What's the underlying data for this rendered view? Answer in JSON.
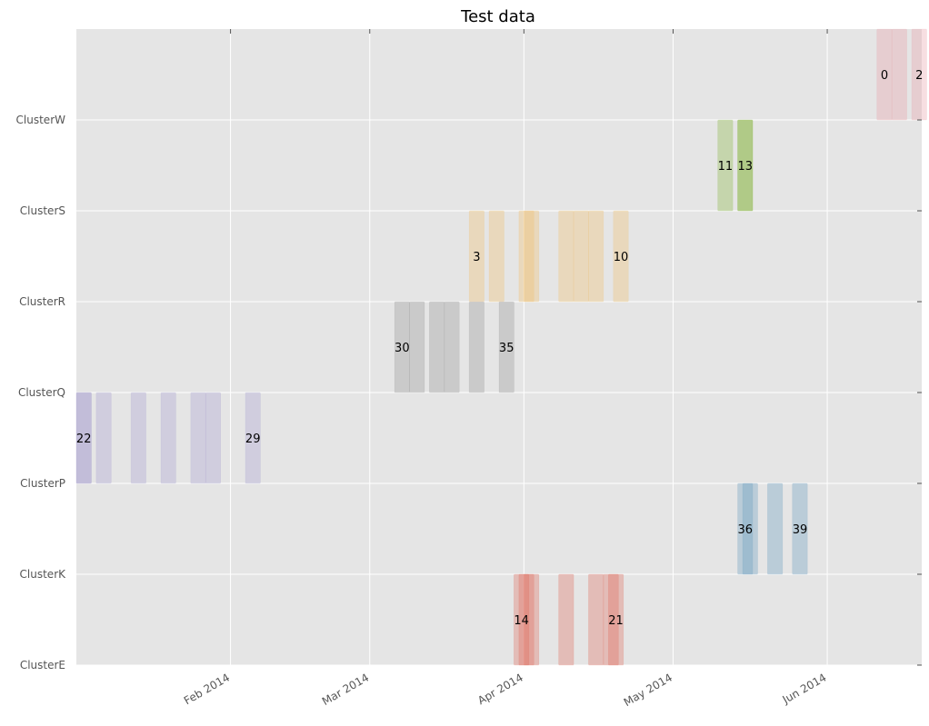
{
  "chart_data": {
    "type": "timeline",
    "title": "Test data",
    "xlabel": "",
    "ylabel": "",
    "grid": true,
    "y_categories": [
      "ClusterE",
      "ClusterK",
      "ClusterP",
      "ClusterQ",
      "ClusterR",
      "ClusterS",
      "ClusterW"
    ],
    "x_range": [
      "2014-01-01",
      "2014-06-20"
    ],
    "x_ticks": [
      {
        "date": "2014-02-01",
        "label": "Feb 2014"
      },
      {
        "date": "2014-03-01",
        "label": "Mar 2014"
      },
      {
        "date": "2014-04-01",
        "label": "Apr 2014"
      },
      {
        "date": "2014-05-01",
        "label": "May 2014"
      },
      {
        "date": "2014-06-01",
        "label": "Jun 2014"
      }
    ],
    "series": [
      {
        "cluster": "ClusterW",
        "color": "#e8a0a8",
        "bars": [
          {
            "start": "2014-06-11",
            "end": "2014-06-14",
            "label": "0"
          },
          {
            "start": "2014-06-14",
            "end": "2014-06-17",
            "label": ""
          },
          {
            "start": "2014-06-18",
            "end": "2014-06-21",
            "label": "2"
          }
        ]
      },
      {
        "cluster": "ClusterS",
        "color": "#8ab843",
        "bars": [
          {
            "start": "2014-05-10",
            "end": "2014-05-13",
            "label": "11"
          },
          {
            "start": "2014-05-14",
            "end": "2014-05-17",
            "label": "13"
          },
          {
            "start": "2014-05-14",
            "end": "2014-05-17",
            "label": ""
          }
        ]
      },
      {
        "cluster": "ClusterR",
        "color": "#f0c070",
        "bars": [
          {
            "start": "2014-03-21",
            "end": "2014-03-24",
            "label": "3"
          },
          {
            "start": "2014-03-25",
            "end": "2014-03-28",
            "label": ""
          },
          {
            "start": "2014-03-31",
            "end": "2014-04-03",
            "label": ""
          },
          {
            "start": "2014-04-01",
            "end": "2014-04-04",
            "label": ""
          },
          {
            "start": "2014-04-08",
            "end": "2014-04-11",
            "label": ""
          },
          {
            "start": "2014-04-11",
            "end": "2014-04-14",
            "label": ""
          },
          {
            "start": "2014-04-14",
            "end": "2014-04-17",
            "label": ""
          },
          {
            "start": "2014-04-19",
            "end": "2014-04-22",
            "label": "10"
          }
        ]
      },
      {
        "cluster": "ClusterQ",
        "color": "#999999",
        "bars": [
          {
            "start": "2014-03-06",
            "end": "2014-03-09",
            "label": "30"
          },
          {
            "start": "2014-03-09",
            "end": "2014-03-12",
            "label": ""
          },
          {
            "start": "2014-03-13",
            "end": "2014-03-16",
            "label": ""
          },
          {
            "start": "2014-03-16",
            "end": "2014-03-19",
            "label": ""
          },
          {
            "start": "2014-03-21",
            "end": "2014-03-24",
            "label": ""
          },
          {
            "start": "2014-03-27",
            "end": "2014-03-30",
            "label": "35"
          }
        ]
      },
      {
        "cluster": "ClusterP",
        "color": "#a8a0d0",
        "bars": [
          {
            "start": "2014-01-01",
            "end": "2014-01-04",
            "label": "22"
          },
          {
            "start": "2014-01-01",
            "end": "2014-01-04",
            "label": ""
          },
          {
            "start": "2014-01-05",
            "end": "2014-01-08",
            "label": ""
          },
          {
            "start": "2014-01-12",
            "end": "2014-01-15",
            "label": ""
          },
          {
            "start": "2014-01-18",
            "end": "2014-01-21",
            "label": ""
          },
          {
            "start": "2014-01-24",
            "end": "2014-01-27",
            "label": ""
          },
          {
            "start": "2014-01-27",
            "end": "2014-01-30",
            "label": ""
          },
          {
            "start": "2014-02-04",
            "end": "2014-02-07",
            "label": "29"
          }
        ]
      },
      {
        "cluster": "ClusterK",
        "color": "#6a9ec0",
        "bars": [
          {
            "start": "2014-05-14",
            "end": "2014-05-17",
            "label": "36"
          },
          {
            "start": "2014-05-15",
            "end": "2014-05-18",
            "label": ""
          },
          {
            "start": "2014-05-20",
            "end": "2014-05-23",
            "label": ""
          },
          {
            "start": "2014-05-25",
            "end": "2014-05-28",
            "label": "39"
          }
        ]
      },
      {
        "cluster": "ClusterE",
        "color": "#e07060",
        "bars": [
          {
            "start": "2014-03-30",
            "end": "2014-04-02",
            "label": "14"
          },
          {
            "start": "2014-03-31",
            "end": "2014-04-03",
            "label": ""
          },
          {
            "start": "2014-04-01",
            "end": "2014-04-04",
            "label": ""
          },
          {
            "start": "2014-04-08",
            "end": "2014-04-11",
            "label": ""
          },
          {
            "start": "2014-04-14",
            "end": "2014-04-17",
            "label": ""
          },
          {
            "start": "2014-04-17",
            "end": "2014-04-20",
            "label": ""
          },
          {
            "start": "2014-04-18",
            "end": "2014-04-21",
            "label": "21"
          }
        ]
      }
    ]
  }
}
